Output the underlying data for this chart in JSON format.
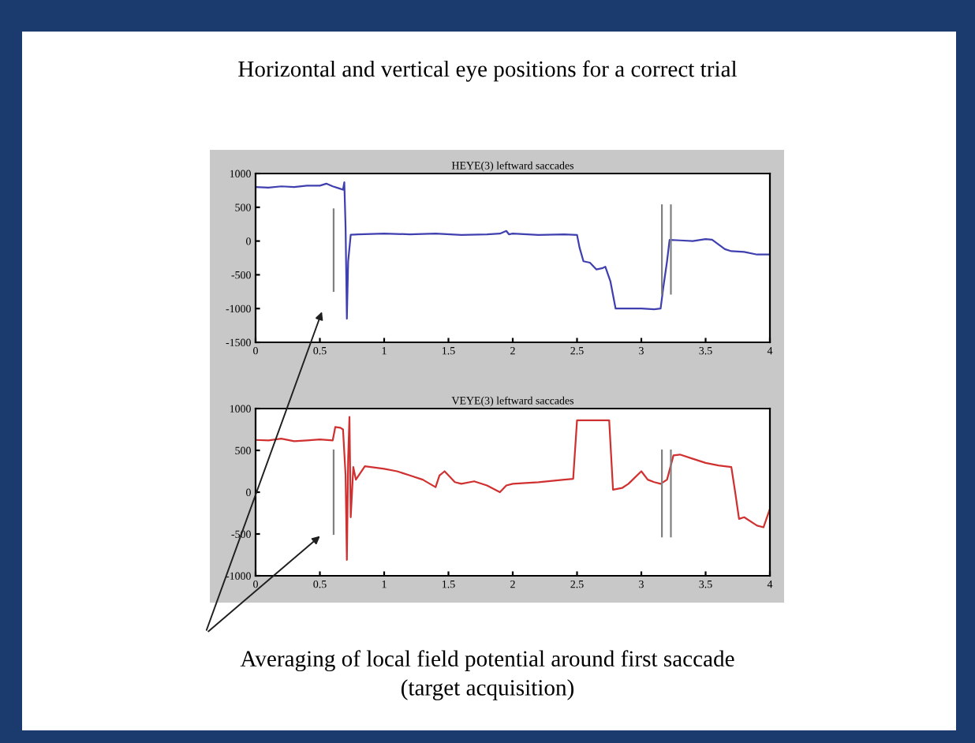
{
  "chart_data": [
    {
      "type": "line",
      "title": "HEYE(3) leftward saccades",
      "annotations": [
        "Horizontal and vertical eye positions for a correct trial"
      ],
      "xlim": [
        0,
        4
      ],
      "ylim": [
        -1500,
        1000
      ],
      "xticks": [
        0,
        0.5,
        1,
        1.5,
        2,
        2.5,
        3,
        3.5,
        4
      ],
      "yticks": [
        -1500,
        -1000,
        -500,
        0,
        500,
        1000
      ],
      "grid": false,
      "legend": false,
      "series": [
        {
          "color": "#3f3fb0",
          "x": [
            0,
            0.1,
            0.2,
            0.3,
            0.4,
            0.5,
            0.55,
            0.6,
            0.65,
            0.68,
            0.69,
            0.7,
            0.71,
            0.72,
            0.74,
            0.8,
            1.0,
            1.2,
            1.4,
            1.6,
            1.8,
            1.9,
            1.95,
            1.97,
            2.0,
            2.2,
            2.4,
            2.5,
            2.52,
            2.55,
            2.6,
            2.65,
            2.7,
            2.72,
            2.76,
            2.8,
            2.9,
            3.0,
            3.1,
            3.15,
            3.17,
            3.2,
            3.22,
            3.3,
            3.4,
            3.5,
            3.55,
            3.6,
            3.65,
            3.7,
            3.8,
            3.9,
            4.0
          ],
          "values": [
            800,
            790,
            810,
            800,
            820,
            820,
            850,
            810,
            780,
            760,
            870,
            200,
            -1150,
            -300,
            94,
            100,
            110,
            100,
            110,
            90,
            100,
            110,
            150,
            100,
            110,
            90,
            100,
            90,
            -100,
            -300,
            -320,
            -420,
            -400,
            -380,
            -600,
            -1000,
            -1000,
            -1000,
            -1010,
            -1000,
            -700,
            -300,
            16,
            10,
            0,
            30,
            20,
            -50,
            -120,
            -150,
            -160,
            -200,
            -200
          ]
        },
        {
          "color": "#808080",
          "x": [
            0.607,
            0.607
          ],
          "values": [
            470,
            -740
          ]
        },
        {
          "color": "#808080",
          "x": [
            3.16,
            3.16
          ],
          "values": [
            530,
            -780
          ]
        },
        {
          "color": "#808080",
          "x": [
            3.23,
            3.23
          ],
          "values": [
            530,
            -780
          ]
        }
      ]
    },
    {
      "type": "line",
      "title": "VEYE(3) leftward saccades",
      "annotations": [
        "Averaging of local field potential around first saccade\n(target acquisition)"
      ],
      "xlim": [
        0,
        4
      ],
      "ylim": [
        -1000,
        1000
      ],
      "xticks": [
        0,
        0.5,
        1,
        1.5,
        2,
        2.5,
        3,
        3.5,
        4
      ],
      "yticks": [
        -1000,
        -500,
        0,
        500,
        1000
      ],
      "grid": false,
      "legend": false,
      "series": [
        {
          "color": "#d03030",
          "x": [
            0,
            0.1,
            0.2,
            0.3,
            0.4,
            0.5,
            0.6,
            0.62,
            0.66,
            0.68,
            0.7,
            0.71,
            0.72,
            0.73,
            0.74,
            0.76,
            0.78,
            0.85,
            1.0,
            1.1,
            1.2,
            1.3,
            1.4,
            1.43,
            1.47,
            1.55,
            1.6,
            1.7,
            1.8,
            1.9,
            1.95,
            2.0,
            2.1,
            2.2,
            2.4,
            2.47,
            2.5,
            2.6,
            2.7,
            2.75,
            2.78,
            2.85,
            2.9,
            3.0,
            3.05,
            3.1,
            3.15,
            3.2,
            3.25,
            3.3,
            3.4,
            3.5,
            3.6,
            3.7,
            3.73,
            3.76,
            3.8,
            3.9,
            3.95,
            4.0
          ],
          "values": [
            625,
            620,
            640,
            610,
            620,
            630,
            620,
            780,
            770,
            750,
            200,
            -810,
            400,
            900,
            -300,
            300,
            150,
            310,
            280,
            250,
            200,
            150,
            60,
            200,
            250,
            120,
            100,
            130,
            80,
            0,
            80,
            100,
            110,
            120,
            150,
            160,
            860,
            860,
            860,
            860,
            30,
            50,
            100,
            250,
            150,
            120,
            100,
            150,
            440,
            450,
            400,
            350,
            320,
            300,
            0,
            -320,
            -300,
            -400,
            -420,
            -200
          ]
        },
        {
          "color": "#808080",
          "x": [
            0.607,
            0.607
          ],
          "values": [
            500,
            -500
          ]
        },
        {
          "color": "#808080",
          "x": [
            3.16,
            3.16
          ],
          "values": [
            500,
            -530
          ]
        },
        {
          "color": "#808080",
          "x": [
            3.23,
            3.23
          ],
          "values": [
            500,
            -530
          ]
        }
      ]
    }
  ]
}
